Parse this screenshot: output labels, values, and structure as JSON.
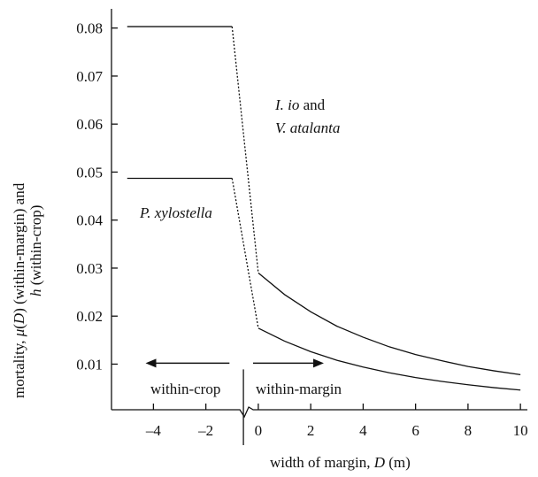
{
  "chart_data": {
    "type": "line",
    "xlabel_prefix": "width of margin, ",
    "xlabel_var": "D",
    "xlabel_suffix": " (m)",
    "ylabel_line1_prefix": "mortality, ",
    "ylabel_line1_mu": "μ",
    "ylabel_line1_mid": "(",
    "ylabel_line1_var": "D",
    "ylabel_line1_suffix": ") (within-margin) and",
    "ylabel_line2_var": "h",
    "ylabel_line2_suffix": " (within-crop)",
    "x_ticks": [
      -4,
      -2,
      0,
      2,
      4,
      6,
      8,
      10
    ],
    "x_tick_labels": [
      "–4",
      "–2",
      "0",
      "2",
      "4",
      "6",
      "8",
      "10"
    ],
    "y_ticks": [
      0.01,
      0.02,
      0.03,
      0.04,
      0.05,
      0.06,
      0.07,
      0.08
    ],
    "y_tick_labels": [
      "0.01",
      "0.02",
      "0.03",
      "0.04",
      "0.05",
      "0.06",
      "0.07",
      "0.08"
    ],
    "xlim": [
      -5.6,
      10.4
    ],
    "ylim": [
      0.0005,
      0.084
    ],
    "series": [
      {
        "name": "I. io and V. atalanta",
        "crop": {
          "x": [
            -5,
            -1
          ],
          "y": [
            0.0803,
            0.0803
          ]
        },
        "transition": {
          "x": [
            -1,
            0
          ],
          "y": [
            0.0803,
            0.029
          ]
        },
        "margin": {
          "x": [
            0,
            1,
            2,
            3,
            4,
            5,
            6,
            7,
            8,
            9,
            10
          ],
          "y": [
            0.029,
            0.0245,
            0.0209,
            0.0179,
            0.0156,
            0.0136,
            0.012,
            0.0107,
            0.0095,
            0.0086,
            0.0078
          ]
        }
      },
      {
        "name": "P. xylostella",
        "crop": {
          "x": [
            -5,
            -1
          ],
          "y": [
            0.0487,
            0.0487
          ]
        },
        "transition": {
          "x": [
            -1,
            0
          ],
          "y": [
            0.0487,
            0.0175
          ]
        },
        "margin": {
          "x": [
            0,
            1,
            2,
            3,
            4,
            5,
            6,
            7,
            8,
            9,
            10
          ],
          "y": [
            0.0175,
            0.0148,
            0.0126,
            0.0108,
            0.0094,
            0.0082,
            0.0072,
            0.0064,
            0.0057,
            0.0051,
            0.0046
          ]
        }
      }
    ],
    "annotations": {
      "io_part1": "I. io",
      "io_part2": " and",
      "atalanta": "V. atalanta",
      "xylostella": "P. xylostella",
      "within_crop": "within-crop",
      "within_margin": "within-margin"
    }
  }
}
